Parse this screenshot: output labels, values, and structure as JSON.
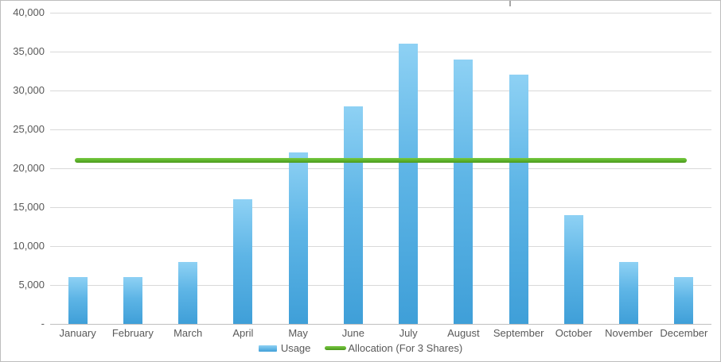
{
  "chart_data": {
    "type": "bar",
    "title": "",
    "categories": [
      "January",
      "February",
      "March",
      "April",
      "May",
      "June",
      "July",
      "August",
      "September",
      "October",
      "November",
      "December"
    ],
    "series": [
      {
        "name": "Usage",
        "type": "bar",
        "values": [
          6000,
          6000,
          8000,
          16000,
          22000,
          28000,
          36000,
          34000,
          32000,
          14000,
          8000,
          6000
        ]
      },
      {
        "name": "Allocation (For 3 Shares)",
        "type": "line",
        "values": [
          21000,
          21000,
          21000,
          21000,
          21000,
          21000,
          21000,
          21000,
          21000,
          21000,
          21000,
          21000
        ]
      }
    ],
    "ylim": [
      0,
      40000
    ],
    "ytick_step": 5000,
    "ytick_labels": [
      "40,000",
      "35,000",
      "30,000",
      "25,000",
      "20,000",
      "15,000",
      "10,000",
      "5,000",
      "-"
    ],
    "grid": true,
    "legend_position": "bottom"
  },
  "colors": {
    "bar_gradient_top": "#8ed1f4",
    "bar_gradient_bottom": "#3f9fd8",
    "allocation_green": "#5cb32a",
    "gridline": "#d9d9d9",
    "axis_baseline": "#bfbfbf",
    "label_text": "#595959",
    "frame_border": "#bdbdbd"
  }
}
